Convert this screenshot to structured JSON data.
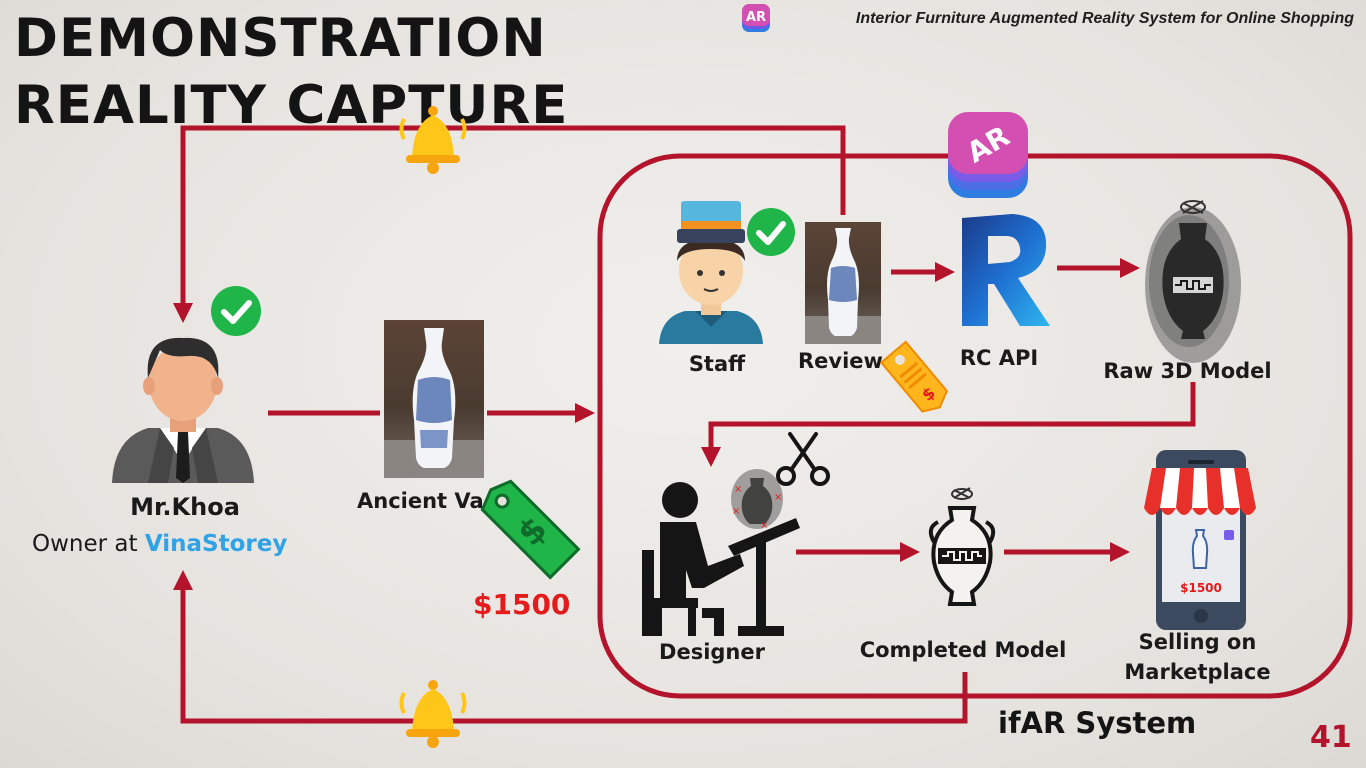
{
  "slide": {
    "title_line1": "DEMONSTRATION",
    "title_line2": "REALITY CAPTURE",
    "header": "Interior Furniture Augmented Reality System for Online Shopping",
    "page_number": "41"
  },
  "owner": {
    "name": "Mr.Khoa",
    "role_prefix": "Owner at ",
    "company": "VinaStorey"
  },
  "product": {
    "label": "Ancient Va",
    "price": "$1500"
  },
  "system": {
    "name": "ifAR System",
    "ar_badge": "AR",
    "nodes": {
      "staff": "Staff",
      "review": "Review",
      "rc_api": "RC API",
      "raw_model": "Raw 3D Model",
      "designer": "Designer",
      "completed_model": "Completed Model",
      "selling_line1": "Selling on",
      "selling_line2": "Marketplace"
    },
    "phone_price": "$1500",
    "tag_symbol": "$"
  },
  "colors": {
    "arrow": "#b3132b",
    "check": "#1fb548",
    "brand": "#2fa3e6",
    "price": "#e31b1b",
    "bell": "#ffc61a"
  },
  "icons": [
    "ar-app-icon",
    "bell-icon",
    "check-icon",
    "person-icon",
    "staff-icon",
    "vase-photo",
    "price-tag-icon",
    "revit-r-icon",
    "vase-icon",
    "designer-icon",
    "scissors-icon",
    "phone-icon",
    "store-awning-icon"
  ]
}
